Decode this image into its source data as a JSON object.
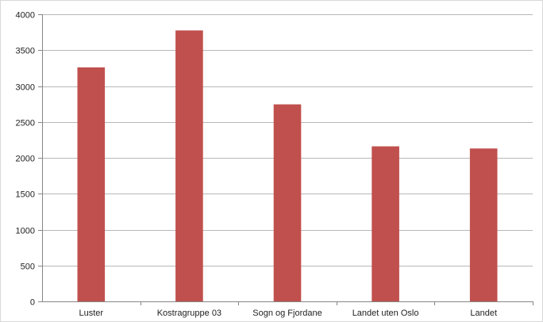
{
  "chart_data": {
    "type": "bar",
    "title": "",
    "xlabel": "",
    "ylabel": "",
    "categories": [
      "Luster",
      "Kostragruppe 03",
      "Sogn og Fjordane",
      "Landet uten Oslo",
      "Landet"
    ],
    "series": [
      {
        "values": [
          3260,
          3775,
          2745,
          2160,
          2130
        ],
        "color": "#c0504d"
      }
    ],
    "ylim": [
      0,
      4000
    ],
    "yticks": [
      0,
      500,
      1000,
      1500,
      2000,
      2500,
      3000,
      3500,
      4000
    ],
    "grid": true,
    "legend": "none"
  }
}
